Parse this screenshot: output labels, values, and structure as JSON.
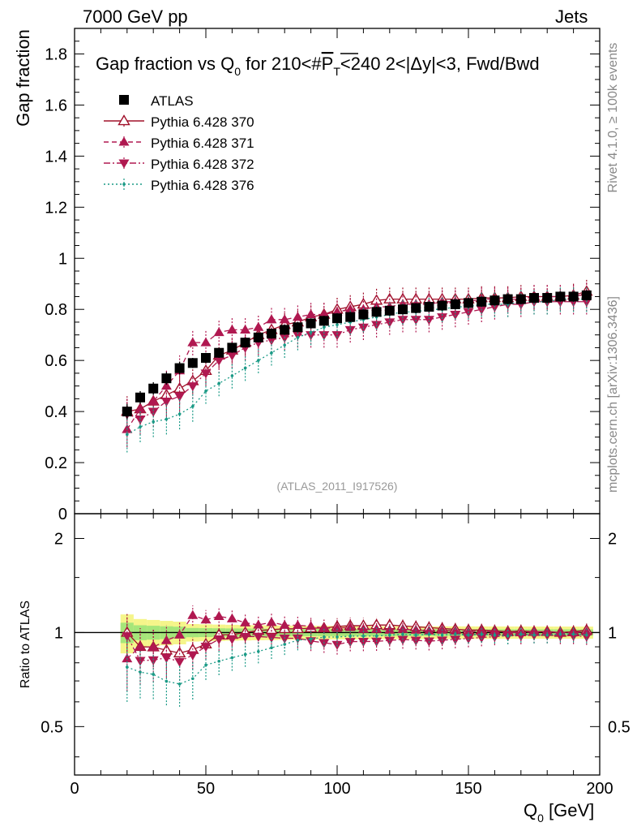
{
  "header": {
    "left": "7000 GeV pp",
    "right": "Jets"
  },
  "side": {
    "top": "Rivet 4.1.0, ≥ 100k events",
    "bottom": "mcplots.cern.ch [arXiv:1306.3436]"
  },
  "chart_data": {
    "type": "scatter",
    "title_main": "Gap fraction vs Q",
    "title_sub": "0",
    "title_rest": " for 210<#",
    "title_bar": "P",
    "title_bar_sub": "T",
    "title_end": "<240  2<|Δy|<3, Fwd/Bwd",
    "analysis_label": "(ATLAS_2011_I917526)",
    "ylabel": "Gap fraction",
    "ratio_ylabel": "Ratio to ATLAS",
    "xlabel_main": "Q",
    "xlabel_sub": "0",
    "xlabel_unit": " [GeV]",
    "xlim": [
      0,
      200
    ],
    "ylim": [
      0,
      1.9
    ],
    "ratio_ylim": [
      0.35,
      2.4
    ],
    "x_ticks": [
      "0",
      "50",
      "100",
      "150",
      "200"
    ],
    "y_ticks": [
      "0",
      "0.2",
      "0.4",
      "0.6",
      "0.8",
      "1",
      "1.2",
      "1.4",
      "1.6",
      "1.8"
    ],
    "ratio_ticks": [
      "0.5",
      "1",
      "2"
    ],
    "x": [
      20,
      25,
      30,
      35,
      40,
      45,
      50,
      55,
      60,
      65,
      70,
      75,
      80,
      85,
      90,
      95,
      100,
      105,
      110,
      115,
      120,
      125,
      130,
      135,
      140,
      145,
      150,
      155,
      160,
      165,
      170,
      175,
      180,
      185,
      190,
      195
    ],
    "data": {
      "name": "ATLAS",
      "color": "#000000",
      "values": [
        0.4,
        0.455,
        0.49,
        0.53,
        0.57,
        0.59,
        0.61,
        0.63,
        0.65,
        0.67,
        0.69,
        0.705,
        0.72,
        0.73,
        0.745,
        0.755,
        0.765,
        0.77,
        0.78,
        0.79,
        0.795,
        0.8,
        0.805,
        0.81,
        0.815,
        0.82,
        0.825,
        0.83,
        0.835,
        0.84,
        0.84,
        0.845,
        0.845,
        0.85,
        0.85,
        0.855
      ],
      "errors": [
        0.03,
        0.025,
        0.025,
        0.025,
        0.025,
        0.02,
        0.02,
        0.02,
        0.02,
        0.02,
        0.02,
        0.02,
        0.02,
        0.02,
        0.02,
        0.02,
        0.02,
        0.02,
        0.02,
        0.02,
        0.02,
        0.02,
        0.02,
        0.02,
        0.02,
        0.02,
        0.02,
        0.02,
        0.02,
        0.02,
        0.02,
        0.02,
        0.02,
        0.02,
        0.02,
        0.02
      ]
    },
    "series": [
      {
        "name": "Pythia 6.428 370",
        "color": "#a0102a",
        "marker": "open-triangle-up",
        "dash": "",
        "values": [
          0.4,
          0.41,
          0.44,
          0.465,
          0.49,
          0.52,
          0.56,
          0.62,
          0.64,
          0.67,
          0.7,
          0.72,
          0.74,
          0.75,
          0.77,
          0.78,
          0.8,
          0.81,
          0.82,
          0.835,
          0.84,
          0.84,
          0.84,
          0.84,
          0.84,
          0.84,
          0.84,
          0.845,
          0.845,
          0.845,
          0.85,
          0.85,
          0.85,
          0.85,
          0.855,
          0.87
        ],
        "errors": [
          0.06,
          0.06,
          0.06,
          0.06,
          0.06,
          0.05,
          0.05,
          0.05,
          0.05,
          0.05,
          0.05,
          0.05,
          0.05,
          0.05,
          0.05,
          0.05,
          0.05,
          0.05,
          0.05,
          0.05,
          0.05,
          0.05,
          0.05,
          0.05,
          0.05,
          0.05,
          0.05,
          0.05,
          0.05,
          0.05,
          0.05,
          0.05,
          0.05,
          0.05,
          0.05,
          0.05
        ]
      },
      {
        "name": "Pythia 6.428 371",
        "color": "#b01850",
        "marker": "filled-triangle-up",
        "dash": "6,4",
        "values": [
          0.33,
          0.41,
          0.44,
          0.5,
          0.56,
          0.67,
          0.67,
          0.71,
          0.72,
          0.72,
          0.73,
          0.76,
          0.76,
          0.77,
          0.78,
          0.78,
          0.79,
          0.8,
          0.8,
          0.81,
          0.81,
          0.82,
          0.82,
          0.82,
          0.83,
          0.83,
          0.83,
          0.84,
          0.84,
          0.84,
          0.84,
          0.85,
          0.85,
          0.85,
          0.85,
          0.86
        ],
        "errors": [
          0.07,
          0.06,
          0.06,
          0.06,
          0.06,
          0.05,
          0.05,
          0.05,
          0.05,
          0.05,
          0.05,
          0.05,
          0.05,
          0.05,
          0.05,
          0.05,
          0.05,
          0.05,
          0.05,
          0.05,
          0.05,
          0.05,
          0.05,
          0.05,
          0.05,
          0.05,
          0.05,
          0.05,
          0.05,
          0.05,
          0.05,
          0.05,
          0.05,
          0.05,
          0.05,
          0.05
        ]
      },
      {
        "name": "Pythia 6.428 372",
        "color": "#b01850",
        "marker": "filled-triangle-down",
        "dash": "8,3,2,3",
        "values": [
          0.39,
          0.37,
          0.4,
          0.44,
          0.46,
          0.5,
          0.55,
          0.6,
          0.62,
          0.65,
          0.67,
          0.68,
          0.69,
          0.7,
          0.7,
          0.7,
          0.7,
          0.72,
          0.73,
          0.74,
          0.75,
          0.76,
          0.76,
          0.76,
          0.77,
          0.78,
          0.79,
          0.8,
          0.81,
          0.82,
          0.82,
          0.83,
          0.83,
          0.83,
          0.83,
          0.83
        ],
        "errors": [
          0.06,
          0.06,
          0.06,
          0.06,
          0.06,
          0.05,
          0.05,
          0.05,
          0.05,
          0.05,
          0.05,
          0.05,
          0.05,
          0.05,
          0.05,
          0.05,
          0.05,
          0.05,
          0.05,
          0.05,
          0.05,
          0.05,
          0.05,
          0.05,
          0.05,
          0.05,
          0.05,
          0.05,
          0.05,
          0.05,
          0.05,
          0.05,
          0.05,
          0.05,
          0.05,
          0.05
        ]
      },
      {
        "name": "Pythia 6.428 376",
        "color": "#1a9a86",
        "marker": "dot",
        "dash": "2,3",
        "values": [
          0.31,
          0.34,
          0.36,
          0.37,
          0.39,
          0.42,
          0.48,
          0.51,
          0.54,
          0.57,
          0.6,
          0.63,
          0.66,
          0.69,
          0.71,
          0.73,
          0.74,
          0.75,
          0.76,
          0.77,
          0.78,
          0.79,
          0.79,
          0.8,
          0.8,
          0.81,
          0.81,
          0.82,
          0.82,
          0.82,
          0.83,
          0.83,
          0.83,
          0.84,
          0.84,
          0.84
        ],
        "errors": [
          0.07,
          0.06,
          0.06,
          0.06,
          0.06,
          0.06,
          0.05,
          0.05,
          0.05,
          0.05,
          0.05,
          0.05,
          0.05,
          0.05,
          0.05,
          0.05,
          0.05,
          0.05,
          0.05,
          0.05,
          0.05,
          0.05,
          0.05,
          0.05,
          0.05,
          0.05,
          0.05,
          0.05,
          0.05,
          0.05,
          0.05,
          0.05,
          0.05,
          0.05,
          0.05,
          0.05
        ]
      }
    ],
    "band_colors": {
      "inner": "#a6e67a",
      "outer": "#f5f58a"
    }
  }
}
